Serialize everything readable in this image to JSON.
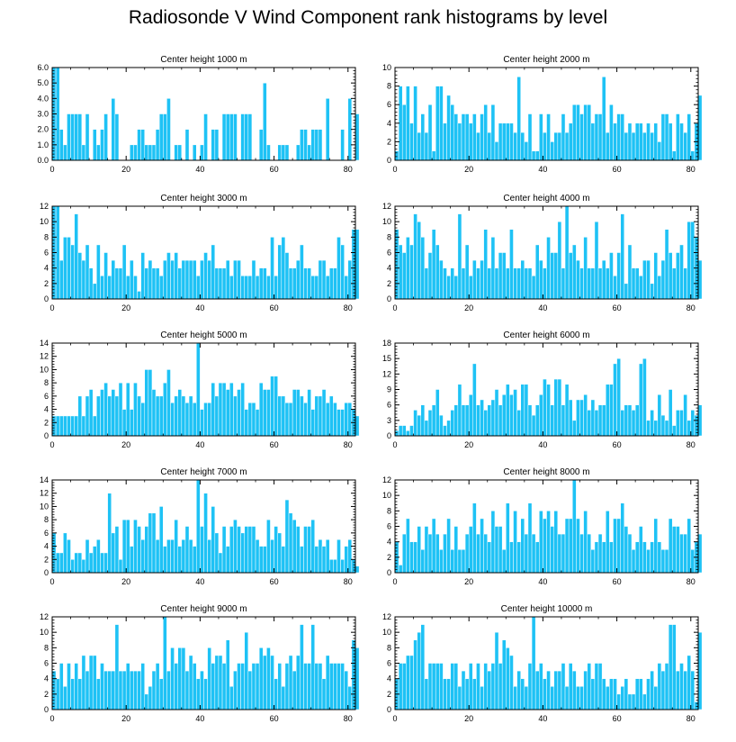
{
  "page_title": "Radiosonde V Wind Component rank histograms by level",
  "colors": {
    "bar": "#1ec2f5",
    "bar_edge": "#ffffff",
    "axis": "#000000"
  },
  "chart_data": [
    {
      "type": "bar",
      "title": "Center height 1000 m",
      "xlim": [
        0,
        82
      ],
      "ylim": [
        0,
        6
      ],
      "xticks": [
        0,
        20,
        40,
        60,
        80
      ],
      "yticks": [
        0,
        1,
        2,
        3,
        4,
        5,
        6
      ],
      "ytick_labels": [
        "0.0",
        "1.0",
        "2.0",
        "3.0",
        "4.0",
        "5.0",
        "6.0"
      ],
      "values": [
        6,
        6,
        2,
        1,
        3,
        3,
        3,
        3,
        1,
        3,
        0,
        2,
        1,
        2,
        3,
        0,
        4,
        3,
        0,
        0,
        0,
        1,
        1,
        2,
        2,
        1,
        1,
        1,
        2,
        3,
        3,
        4,
        0,
        1,
        1,
        0,
        2,
        0,
        1,
        0,
        1,
        3,
        0,
        2,
        2,
        0,
        3,
        3,
        3,
        3,
        0,
        3,
        3,
        3,
        0,
        0,
        2,
        5,
        1,
        0,
        0,
        1,
        1,
        1,
        0,
        0,
        1,
        2,
        2,
        1,
        2,
        2,
        2,
        0,
        4,
        0,
        0,
        0,
        2,
        0,
        4,
        0,
        3
      ]
    },
    {
      "type": "bar",
      "title": "Center height 2000 m",
      "xlim": [
        0,
        82
      ],
      "ylim": [
        0,
        10
      ],
      "xticks": [
        0,
        20,
        40,
        60,
        80
      ],
      "yticks": [
        0,
        2,
        4,
        6,
        8,
        10
      ],
      "values": [
        1,
        8,
        6,
        8,
        4,
        8,
        3,
        5,
        3,
        6,
        1,
        8,
        8,
        4,
        7,
        6,
        5,
        4,
        5,
        5,
        4,
        5,
        3,
        5,
        6,
        3,
        6,
        2,
        4,
        4,
        4,
        4,
        3,
        9,
        3,
        2,
        5,
        1,
        1,
        5,
        3,
        5,
        2,
        3,
        3,
        5,
        3,
        4,
        6,
        6,
        5,
        6,
        6,
        4,
        5,
        5,
        9,
        3,
        6,
        4,
        5,
        5,
        3,
        4,
        3,
        4,
        4,
        3,
        4,
        3,
        4,
        2,
        5,
        5,
        4,
        1,
        5,
        4,
        3,
        5,
        1,
        4,
        7
      ]
    },
    {
      "type": "bar",
      "title": "Center height 3000 m",
      "xlim": [
        0,
        82
      ],
      "ylim": [
        0,
        12
      ],
      "xticks": [
        0,
        20,
        40,
        60,
        80
      ],
      "yticks": [
        0,
        2,
        4,
        6,
        8,
        10,
        12
      ],
      "values": [
        12,
        12,
        5,
        8,
        8,
        7,
        11,
        6,
        5,
        7,
        4,
        2,
        7,
        3,
        6,
        3,
        5,
        4,
        4,
        7,
        3,
        5,
        3,
        1,
        6,
        4,
        5,
        4,
        4,
        3,
        5,
        6,
        5,
        6,
        4,
        5,
        5,
        5,
        5,
        3,
        5,
        6,
        5,
        7,
        4,
        4,
        4,
        5,
        3,
        5,
        5,
        3,
        3,
        3,
        5,
        3,
        4,
        4,
        3,
        8,
        3,
        7,
        8,
        6,
        4,
        4,
        5,
        7,
        4,
        4,
        3,
        3,
        5,
        5,
        3,
        4,
        4,
        8,
        7,
        3,
        5,
        9,
        9
      ]
    },
    {
      "type": "bar",
      "title": "Center height 4000 m",
      "xlim": [
        0,
        82
      ],
      "ylim": [
        0,
        12
      ],
      "xticks": [
        0,
        20,
        40,
        60,
        80
      ],
      "yticks": [
        0,
        2,
        4,
        6,
        8,
        10,
        12
      ],
      "values": [
        9,
        7,
        6,
        8,
        7,
        11,
        10,
        8,
        4,
        6,
        9,
        7,
        5,
        4,
        3,
        4,
        3,
        11,
        4,
        7,
        3,
        5,
        4,
        5,
        9,
        4,
        8,
        4,
        6,
        6,
        4,
        9,
        4,
        4,
        5,
        4,
        4,
        3,
        7,
        5,
        4,
        8,
        6,
        6,
        10,
        4,
        12,
        6,
        7,
        5,
        4,
        8,
        4,
        4,
        10,
        4,
        5,
        4,
        6,
        3,
        6,
        11,
        2,
        7,
        4,
        4,
        3,
        5,
        5,
        2,
        6,
        3,
        5,
        9,
        6,
        4,
        6,
        7,
        4,
        10,
        10,
        8,
        5
      ]
    },
    {
      "type": "bar",
      "title": "Center height 5000 m",
      "xlim": [
        0,
        82
      ],
      "ylim": [
        0,
        14
      ],
      "xticks": [
        0,
        20,
        40,
        60,
        80
      ],
      "yticks": [
        0,
        2,
        4,
        6,
        8,
        10,
        12,
        14
      ],
      "values": [
        3,
        3,
        3,
        3,
        3,
        3,
        3,
        6,
        3,
        6,
        7,
        3,
        6,
        7,
        8,
        6,
        7,
        6,
        8,
        4,
        8,
        4,
        8,
        6,
        5,
        10,
        10,
        7,
        6,
        6,
        8,
        10,
        5,
        6,
        7,
        6,
        5,
        6,
        5,
        14,
        4,
        5,
        5,
        8,
        6,
        8,
        8,
        7,
        8,
        6,
        7,
        8,
        4,
        5,
        5,
        4,
        8,
        7,
        7,
        9,
        9,
        6,
        6,
        5,
        5,
        7,
        7,
        6,
        5,
        7,
        4,
        6,
        6,
        7,
        5,
        6,
        5,
        4,
        4,
        5,
        5,
        4,
        3
      ]
    },
    {
      "type": "bar",
      "title": "Center height 6000 m",
      "xlim": [
        0,
        82
      ],
      "ylim": [
        0,
        18
      ],
      "xticks": [
        0,
        20,
        40,
        60,
        80
      ],
      "yticks": [
        0,
        3,
        6,
        9,
        12,
        15,
        18
      ],
      "values": [
        1,
        2,
        2,
        1,
        2,
        5,
        4,
        6,
        3,
        5,
        6,
        9,
        4,
        2,
        3,
        5,
        6,
        10,
        6,
        6,
        8,
        14,
        6,
        7,
        5,
        6,
        7,
        9,
        6,
        8,
        10,
        8,
        9,
        5,
        10,
        10,
        6,
        4,
        6,
        8,
        11,
        10,
        6,
        11,
        11,
        6,
        10,
        7,
        3,
        7,
        7,
        8,
        5,
        7,
        5,
        6,
        6,
        10,
        10,
        14,
        15,
        5,
        6,
        6,
        5,
        6,
        14,
        15,
        3,
        5,
        3,
        8,
        4,
        3,
        9,
        2,
        5,
        5,
        8,
        3,
        5,
        4,
        6
      ]
    },
    {
      "type": "bar",
      "title": "Center height 7000 m",
      "xlim": [
        0,
        82
      ],
      "ylim": [
        0,
        14
      ],
      "xticks": [
        0,
        20,
        40,
        60,
        80
      ],
      "yticks": [
        0,
        2,
        4,
        6,
        8,
        10,
        12,
        14
      ],
      "values": [
        6,
        3,
        3,
        6,
        5,
        2,
        3,
        3,
        2,
        5,
        3,
        4,
        5,
        3,
        3,
        12,
        6,
        7,
        2,
        8,
        8,
        4,
        8,
        7,
        5,
        7,
        9,
        9,
        5,
        10,
        4,
        5,
        5,
        8,
        4,
        5,
        7,
        5,
        4,
        14,
        7,
        12,
        5,
        10,
        6,
        3,
        7,
        4,
        7,
        8,
        7,
        6,
        7,
        7,
        7,
        5,
        4,
        4,
        8,
        5,
        7,
        6,
        4,
        11,
        9,
        8,
        7,
        4,
        7,
        7,
        8,
        4,
        5,
        4,
        5,
        2,
        2,
        5,
        2,
        4,
        5,
        2,
        1
      ]
    },
    {
      "type": "bar",
      "title": "Center height 8000 m",
      "xlim": [
        0,
        82
      ],
      "ylim": [
        0,
        12
      ],
      "xticks": [
        0,
        20,
        40,
        60,
        80
      ],
      "yticks": [
        0,
        2,
        4,
        6,
        8,
        10,
        12
      ],
      "values": [
        4,
        1,
        5,
        7,
        4,
        4,
        6,
        3,
        6,
        5,
        7,
        5,
        3,
        5,
        7,
        3,
        6,
        3,
        3,
        5,
        6,
        9,
        5,
        7,
        5,
        4,
        8,
        6,
        6,
        3,
        9,
        4,
        8,
        4,
        7,
        5,
        9,
        5,
        4,
        8,
        7,
        8,
        6,
        8,
        5,
        5,
        7,
        7,
        12,
        7,
        5,
        8,
        5,
        3,
        4,
        5,
        4,
        8,
        4,
        7,
        7,
        9,
        6,
        5,
        3,
        4,
        6,
        4,
        3,
        4,
        7,
        4,
        3,
        3,
        7,
        6,
        6,
        5,
        5,
        7,
        3,
        4,
        5
      ]
    },
    {
      "type": "bar",
      "title": "Center height 9000 m",
      "xlim": [
        0,
        82
      ],
      "ylim": [
        0,
        12
      ],
      "xticks": [
        0,
        20,
        40,
        60,
        80
      ],
      "yticks": [
        0,
        2,
        4,
        6,
        8,
        10,
        12
      ],
      "values": [
        5,
        4,
        6,
        3,
        6,
        4,
        6,
        4,
        7,
        5,
        7,
        7,
        4,
        6,
        5,
        5,
        5,
        11,
        5,
        5,
        6,
        5,
        5,
        5,
        6,
        2,
        3,
        5,
        6,
        4,
        12,
        5,
        8,
        6,
        8,
        8,
        5,
        7,
        6,
        4,
        5,
        4,
        8,
        6,
        7,
        7,
        6,
        9,
        3,
        5,
        6,
        6,
        10,
        5,
        6,
        6,
        8,
        7,
        8,
        7,
        4,
        6,
        3,
        6,
        7,
        5,
        7,
        11,
        6,
        6,
        11,
        6,
        6,
        4,
        7,
        6,
        6,
        6,
        6,
        5,
        3,
        9,
        8
      ]
    },
    {
      "type": "bar",
      "title": "Center height 10000 m",
      "xlim": [
        0,
        82
      ],
      "ylim": [
        0,
        12
      ],
      "xticks": [
        0,
        20,
        40,
        60,
        80
      ],
      "yticks": [
        0,
        2,
        4,
        6,
        8,
        10,
        12
      ],
      "values": [
        4,
        6,
        6,
        7,
        7,
        9,
        10,
        11,
        4,
        6,
        6,
        6,
        6,
        4,
        4,
        6,
        6,
        3,
        5,
        4,
        6,
        4,
        6,
        3,
        6,
        5,
        6,
        10,
        6,
        9,
        8,
        7,
        3,
        5,
        4,
        3,
        6,
        12,
        5,
        6,
        4,
        5,
        3,
        5,
        5,
        6,
        3,
        6,
        5,
        3,
        3,
        5,
        6,
        4,
        6,
        6,
        4,
        3,
        4,
        4,
        2,
        3,
        4,
        2,
        2,
        4,
        4,
        2,
        4,
        5,
        3,
        6,
        5,
        6,
        11,
        11,
        5,
        6,
        5,
        7,
        5,
        1,
        10
      ]
    }
  ]
}
